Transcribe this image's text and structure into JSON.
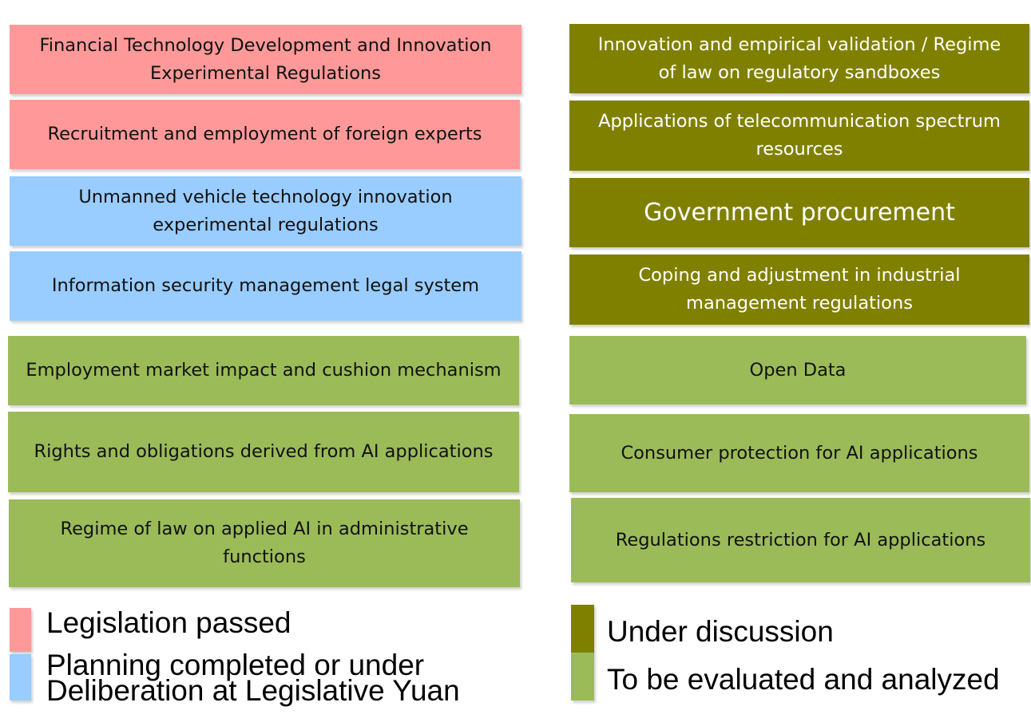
{
  "colors": {
    "passed": "#ff9999",
    "planning": "#99ccff",
    "under_discussion": "#808000",
    "to_be_evaluated": "#9bbb59"
  },
  "left_column": [
    {
      "text": "Financial Technology Development and Innovation Experimental Regulations",
      "status": "passed"
    },
    {
      "text": "Recruitment and employment of foreign experts",
      "status": "passed"
    },
    {
      "text": "Unmanned vehicle technology innovation experimental regulations",
      "status": "planning"
    },
    {
      "text": "Information security management legal system",
      "status": "planning"
    },
    {
      "text": "Employment market impact and cushion mechanism",
      "status": "to_be_evaluated"
    },
    {
      "text": "Rights and obligations derived from AI applications",
      "status": "to_be_evaluated"
    },
    {
      "text": "Regime of law on applied AI in administrative functions",
      "status": "to_be_evaluated"
    }
  ],
  "right_column": [
    {
      "text": "Innovation and empirical validation / Regime of law on regulatory sandboxes",
      "status": "under_discussion"
    },
    {
      "text": "Applications of telecommunication spectrum resources",
      "status": "under_discussion"
    },
    {
      "text": "Government procurement",
      "status": "under_discussion"
    },
    {
      "text": "Coping and adjustment in industrial management regulations",
      "status": "under_discussion"
    },
    {
      "text": "Open Data",
      "status": "to_be_evaluated"
    },
    {
      "text": "Consumer protection for AI applications",
      "status": "to_be_evaluated"
    },
    {
      "text": "Regulations restriction for AI applications",
      "status": "to_be_evaluated"
    }
  ],
  "legend": {
    "passed": "Legislation passed",
    "planning": "Planning completed or under Deliberation at Legislative Yuan",
    "under_discussion": "Under discussion",
    "to_be_evaluated": "To be evaluated and analyzed"
  }
}
